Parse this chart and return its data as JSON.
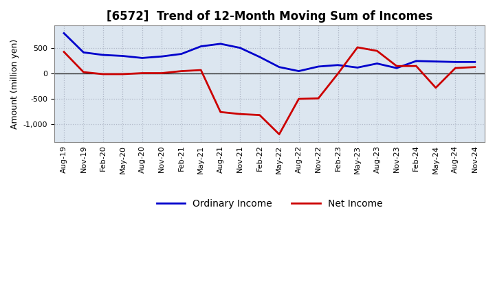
{
  "title": "[6572]  Trend of 12-Month Moving Sum of Incomes",
  "ylabel": "Amount (million yen)",
  "x_labels": [
    "Aug-19",
    "Nov-19",
    "Feb-20",
    "May-20",
    "Aug-20",
    "Nov-20",
    "Feb-21",
    "May-21",
    "Aug-21",
    "Nov-21",
    "Feb-22",
    "May-22",
    "Aug-22",
    "Nov-22",
    "Feb-23",
    "May-23",
    "Aug-23",
    "Nov-23",
    "Feb-24",
    "May-24",
    "Aug-24",
    "Nov-24"
  ],
  "ordinary_income": [
    800,
    420,
    370,
    350,
    310,
    340,
    390,
    540,
    590,
    510,
    330,
    130,
    50,
    140,
    170,
    120,
    200,
    110,
    250,
    240,
    230,
    230
  ],
  "net_income": [
    430,
    30,
    -10,
    -10,
    10,
    10,
    50,
    70,
    -760,
    -800,
    -820,
    -1200,
    -500,
    -490,
    0,
    520,
    450,
    150,
    150,
    -280,
    110,
    130
  ],
  "ordinary_color": "#0000cc",
  "net_color": "#cc0000",
  "ylim": [
    -1350,
    950
  ],
  "yticks": [
    -1000,
    -500,
    0,
    500
  ],
  "grid_color": "#b0b8c8",
  "background_color": "#ffffff",
  "line_width": 2.0,
  "title_fontsize": 12,
  "legend_fontsize": 10,
  "tick_fontsize": 8,
  "plot_bg_color": "#dce6f0"
}
